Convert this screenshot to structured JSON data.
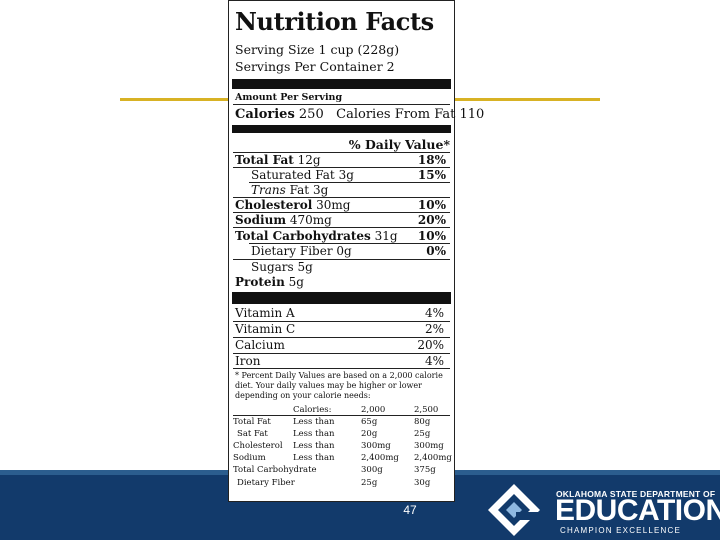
{
  "label": {
    "title": "Nutrition Facts",
    "serving_size": "Serving Size 1 cup (228g)",
    "servings_per_container": "Servings Per Container 2",
    "amount_per_serving": "Amount Per Serving",
    "calories_label": "Calories",
    "calories_value": "250",
    "calories_fat_label": "Calories From Fat",
    "calories_fat_value": "110",
    "daily_value_header": "% Daily Value*",
    "nutrients": [
      {
        "label": "Total Fat",
        "amount": "12g",
        "pct": "18%"
      },
      {
        "label": "Saturated Fat",
        "amount": "3g",
        "pct": "15%"
      },
      {
        "label": "Trans",
        "label2": "Fat",
        "amount": "3g",
        "pct": ""
      },
      {
        "label": "Cholesterol",
        "amount": "30mg",
        "pct": "10%"
      },
      {
        "label": "Sodium",
        "amount": "470mg",
        "pct": "20%"
      },
      {
        "label": "Total Carbohydrates",
        "amount": "31g",
        "pct": "10%"
      },
      {
        "label": "Dietary Fiber",
        "amount": "0g",
        "pct": "0%"
      },
      {
        "label": "Sugars",
        "amount": "5g",
        "pct": ""
      },
      {
        "label": "Protein",
        "amount": "5g",
        "pct": ""
      }
    ],
    "vitamins": [
      {
        "label": "Vitamin A",
        "pct": "4%"
      },
      {
        "label": "Vitamin C",
        "pct": "2%"
      },
      {
        "label": "Calcium",
        "pct": "20%"
      },
      {
        "label": "Iron",
        "pct": "4%"
      }
    ],
    "footnote": "* Percent Daily Values are based on a 2,000 calorie diet. Your daily values may be higher or lower depending on your calorie needs:",
    "table_header": {
      "calories": "Calories:",
      "c2000": "2,000",
      "c2500": "2,500"
    },
    "table_rows": [
      {
        "label": "Total Fat",
        "cond": "Less than",
        "v1": "65g",
        "v2": "80g"
      },
      {
        "label": "Sat Fat",
        "cond": "Less than",
        "v1": "20g",
        "v2": "25g"
      },
      {
        "label": "Cholesterol",
        "cond": "Less than",
        "v1": "300mg",
        "v2": "300mg"
      },
      {
        "label": "Sodium",
        "cond": "Less than",
        "v1": "2,400mg",
        "v2": "2,400mg"
      },
      {
        "label": "Total Carbohydrate",
        "cond": "",
        "v1": "300g",
        "v2": "375g"
      },
      {
        "label": "Dietary Fiber",
        "cond": "",
        "v1": "25g",
        "v2": "30g"
      }
    ]
  },
  "footer": {
    "page_number": "47",
    "org_top": "OKLAHOMA STATE DEPARTMENT OF",
    "org_main": "EDUCATION",
    "org_sub": "CHAMPION EXCELLENCE"
  },
  "colors": {
    "accent_gold": "#d8b224",
    "footer_blue": "#123a6b",
    "logo_light_blue": "#8fb8e0"
  },
  "icons": {
    "logo": "oklahoma-education-logo"
  }
}
